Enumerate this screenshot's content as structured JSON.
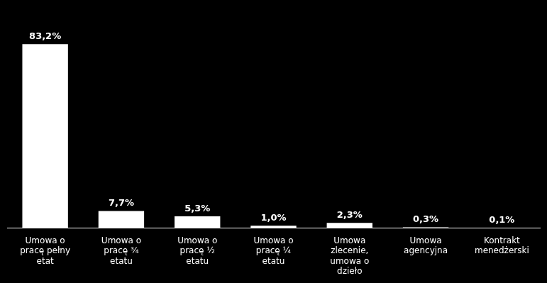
{
  "chart_data": {
    "type": "bar",
    "categories": [
      "Umowa o\npracę pełny\netat",
      "Umowa o\npracę ¾\netatu",
      "Umowa o\npracę ½\netatu",
      "Umowa o\npracę ¼\netatu",
      "Umowa\nzlecenie,\numowa o\ndzieło",
      "Umowa\nagencyjna",
      "Kontrakt\nmenedżerski"
    ],
    "values": [
      83.2,
      7.7,
      5.3,
      1.0,
      2.3,
      0.3,
      0.1
    ],
    "value_labels": [
      "83,2%",
      "7,7%",
      "5,3%",
      "1,0%",
      "2,3%",
      "0,3%",
      "0,1%"
    ],
    "color": "#ffffff",
    "ylim": [
      0,
      100
    ],
    "grid": false,
    "data_labels": true,
    "tick_labels": "x"
  }
}
